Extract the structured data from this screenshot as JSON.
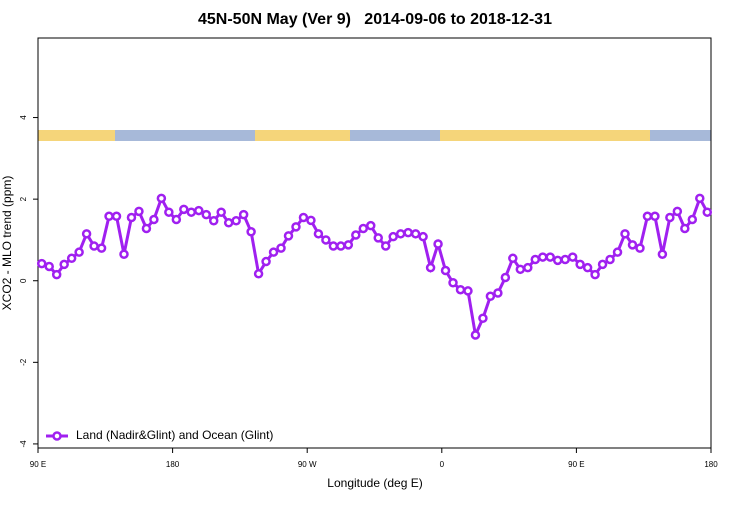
{
  "chart_data": {
    "type": "line",
    "title": "45N-50N May (Ver 9)   2014-09-06 to 2018-12-31",
    "xlabel": "Longitude (deg E)",
    "ylabel": "XCO2 - MLO trend (ppm)",
    "xlim": [
      90,
      540
    ],
    "ylim": [
      -4.1,
      5.95
    ],
    "xticks": [
      {
        "value": 90,
        "label": "90 E"
      },
      180,
      {
        "value": 270,
        "label": "90 W"
      },
      {
        "value": 360,
        "label": "0"
      },
      {
        "value": 450,
        "label": "90 E"
      },
      {
        "value": 540,
        "label": "180"
      }
    ],
    "yticks": [
      -4,
      -2,
      0,
      2,
      4
    ],
    "legend": "bottom-left",
    "x": [
      92.5,
      97.5,
      102.5,
      107.5,
      112.5,
      117.5,
      122.5,
      127.5,
      132.5,
      137.5,
      142.5,
      147.5,
      152.5,
      157.5,
      162.5,
      167.5,
      172.5,
      177.5,
      182.5,
      187.5,
      192.5,
      197.5,
      202.5,
      207.5,
      212.5,
      217.5,
      222.5,
      227.5,
      232.5,
      237.5,
      242.5,
      247.5,
      252.5,
      257.5,
      262.5,
      267.5,
      272.5,
      277.5,
      282.5,
      287.5,
      292.5,
      297.5,
      302.5,
      307.5,
      312.5,
      317.5,
      322.5,
      327.5,
      332.5,
      337.5,
      342.5,
      347.5,
      352.5,
      357.5,
      362.5,
      367.5,
      372.5,
      377.5,
      382.5,
      387.5,
      392.5,
      397.5,
      402.5,
      407.5,
      412.5,
      417.5,
      422.5,
      427.5,
      432.5,
      437.5,
      442.5,
      447.5,
      452.5,
      457.5,
      462.5,
      467.5,
      472.5,
      477.5,
      482.5,
      487.5,
      492.5,
      497.5,
      502.5,
      507.5,
      512.5,
      517.5,
      522.5,
      527.5,
      532.5,
      537.5
    ],
    "series": [
      {
        "name": "Land (Nadir&Glint) and Ocean (Glint)",
        "color": "#a020f0",
        "values": [
          0.42,
          0.35,
          0.15,
          0.4,
          0.55,
          0.7,
          1.15,
          0.85,
          0.8,
          1.58,
          1.58,
          0.65,
          1.55,
          1.7,
          1.28,
          1.5,
          2.02,
          1.68,
          1.5,
          1.75,
          1.68,
          1.72,
          1.62,
          1.47,
          1.68,
          1.42,
          1.47,
          1.62,
          1.2,
          0.17,
          0.47,
          0.7,
          0.8,
          1.1,
          1.32,
          1.55,
          1.48,
          1.15,
          1.0,
          0.85,
          0.85,
          0.88,
          1.12,
          1.28,
          1.35,
          1.05,
          0.85,
          1.08,
          1.15,
          1.18,
          1.15,
          1.08,
          0.32,
          0.9,
          0.25,
          -0.05,
          -0.22,
          -0.25,
          -1.33,
          -0.92,
          -0.38,
          -0.3,
          0.08,
          0.55,
          0.28,
          0.32,
          0.52,
          0.58,
          0.58,
          0.5,
          0.52,
          0.58,
          0.4,
          0.32,
          0.15,
          0.4,
          0.52,
          0.7,
          1.15,
          0.88,
          0.8,
          1.58,
          1.58,
          0.65,
          1.55,
          1.7,
          1.28,
          1.5,
          2.02,
          1.68
        ]
      }
    ]
  }
}
